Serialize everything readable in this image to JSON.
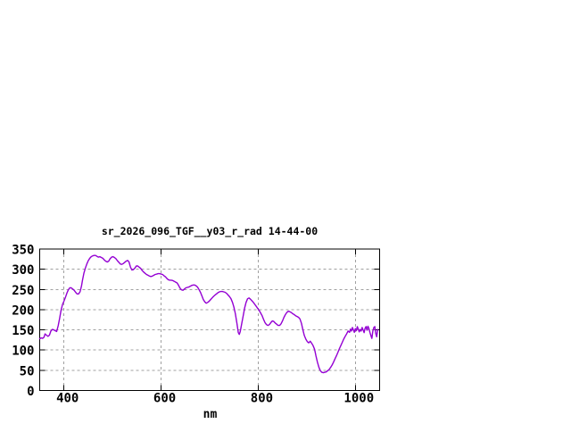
{
  "chart_data": {
    "type": "line",
    "title": "sr_2026_096_TGF__y03_r_rad 14-44-00",
    "xlabel": "nm",
    "ylabel": "",
    "xlim": [
      350,
      1050
    ],
    "ylim": [
      0,
      350
    ],
    "xticks": [
      400,
      600,
      800,
      1000
    ],
    "yticks": [
      0,
      50,
      100,
      150,
      200,
      250,
      300,
      350
    ],
    "grid": true,
    "legend": "none",
    "line_color": "#9400d3",
    "grid_color": "#a0a0a0",
    "axis_color": "#000000",
    "background_color": "#ffffff",
    "points": [
      [
        350,
        128
      ],
      [
        353,
        130
      ],
      [
        356,
        129
      ],
      [
        359,
        132
      ],
      [
        361,
        140
      ],
      [
        364,
        137
      ],
      [
        367,
        134
      ],
      [
        370,
        137
      ],
      [
        373,
        147
      ],
      [
        376,
        151
      ],
      [
        379,
        150
      ],
      [
        382,
        148
      ],
      [
        385,
        146
      ],
      [
        388,
        160
      ],
      [
        391,
        178
      ],
      [
        394,
        198
      ],
      [
        397,
        213
      ],
      [
        400,
        221
      ],
      [
        403,
        230
      ],
      [
        406,
        241
      ],
      [
        409,
        249
      ],
      [
        412,
        254
      ],
      [
        415,
        254
      ],
      [
        418,
        251
      ],
      [
        421,
        248
      ],
      [
        424,
        243
      ],
      [
        427,
        239
      ],
      [
        430,
        239
      ],
      [
        433,
        244
      ],
      [
        436,
        258
      ],
      [
        438,
        272
      ],
      [
        441,
        290
      ],
      [
        444,
        303
      ],
      [
        447,
        313
      ],
      [
        450,
        321
      ],
      [
        453,
        327
      ],
      [
        456,
        331
      ],
      [
        459,
        333
      ],
      [
        462,
        334
      ],
      [
        465,
        334
      ],
      [
        468,
        332
      ],
      [
        471,
        330
      ],
      [
        474,
        331
      ],
      [
        477,
        329
      ],
      [
        480,
        327
      ],
      [
        483,
        323
      ],
      [
        486,
        320
      ],
      [
        489,
        318
      ],
      [
        492,
        320
      ],
      [
        495,
        326
      ],
      [
        498,
        330
      ],
      [
        501,
        331
      ],
      [
        504,
        329
      ],
      [
        507,
        326
      ],
      [
        510,
        321
      ],
      [
        513,
        317
      ],
      [
        516,
        313
      ],
      [
        519,
        312
      ],
      [
        522,
        314
      ],
      [
        525,
        317
      ],
      [
        528,
        320
      ],
      [
        531,
        322
      ],
      [
        534,
        318
      ],
      [
        537,
        305
      ],
      [
        540,
        298
      ],
      [
        543,
        299
      ],
      [
        546,
        303
      ],
      [
        549,
        308
      ],
      [
        552,
        308
      ],
      [
        555,
        305
      ],
      [
        558,
        302
      ],
      [
        561,
        297
      ],
      [
        564,
        293
      ],
      [
        567,
        290
      ],
      [
        570,
        287
      ],
      [
        573,
        285
      ],
      [
        576,
        283
      ],
      [
        579,
        282
      ],
      [
        582,
        283
      ],
      [
        585,
        285
      ],
      [
        588,
        287
      ],
      [
        591,
        288
      ],
      [
        594,
        289
      ],
      [
        597,
        289
      ],
      [
        600,
        288
      ],
      [
        603,
        287
      ],
      [
        606,
        284
      ],
      [
        609,
        281
      ],
      [
        612,
        277
      ],
      [
        615,
        274
      ],
      [
        618,
        273
      ],
      [
        621,
        273
      ],
      [
        624,
        272
      ],
      [
        627,
        270
      ],
      [
        630,
        268
      ],
      [
        633,
        266
      ],
      [
        636,
        260
      ],
      [
        639,
        253
      ],
      [
        642,
        249
      ],
      [
        645,
        248
      ],
      [
        648,
        251
      ],
      [
        651,
        254
      ],
      [
        654,
        255
      ],
      [
        657,
        256
      ],
      [
        660,
        258
      ],
      [
        663,
        260
      ],
      [
        666,
        261
      ],
      [
        669,
        261
      ],
      [
        672,
        259
      ],
      [
        675,
        256
      ],
      [
        678,
        250
      ],
      [
        681,
        243
      ],
      [
        684,
        234
      ],
      [
        687,
        225
      ],
      [
        690,
        219
      ],
      [
        693,
        216
      ],
      [
        696,
        218
      ],
      [
        699,
        221
      ],
      [
        702,
        225
      ],
      [
        705,
        229
      ],
      [
        708,
        233
      ],
      [
        711,
        236
      ],
      [
        714,
        239
      ],
      [
        717,
        242
      ],
      [
        720,
        244
      ],
      [
        723,
        245
      ],
      [
        726,
        245
      ],
      [
        729,
        244
      ],
      [
        732,
        243
      ],
      [
        735,
        240
      ],
      [
        738,
        236
      ],
      [
        741,
        232
      ],
      [
        744,
        227
      ],
      [
        747,
        218
      ],
      [
        750,
        206
      ],
      [
        753,
        190
      ],
      [
        756,
        167
      ],
      [
        759,
        143
      ],
      [
        761,
        139
      ],
      [
        763,
        146
      ],
      [
        766,
        165
      ],
      [
        769,
        185
      ],
      [
        772,
        204
      ],
      [
        775,
        218
      ],
      [
        778,
        227
      ],
      [
        781,
        229
      ],
      [
        784,
        226
      ],
      [
        787,
        222
      ],
      [
        790,
        218
      ],
      [
        793,
        213
      ],
      [
        796,
        208
      ],
      [
        799,
        203
      ],
      [
        802,
        198
      ],
      [
        805,
        192
      ],
      [
        808,
        185
      ],
      [
        811,
        176
      ],
      [
        814,
        168
      ],
      [
        817,
        163
      ],
      [
        820,
        161
      ],
      [
        823,
        163
      ],
      [
        826,
        168
      ],
      [
        829,
        172
      ],
      [
        832,
        171
      ],
      [
        835,
        167
      ],
      [
        838,
        164
      ],
      [
        841,
        161
      ],
      [
        844,
        161
      ],
      [
        847,
        165
      ],
      [
        850,
        172
      ],
      [
        853,
        181
      ],
      [
        856,
        188
      ],
      [
        859,
        193
      ],
      [
        862,
        196
      ],
      [
        865,
        195
      ],
      [
        868,
        193
      ],
      [
        871,
        190
      ],
      [
        874,
        188
      ],
      [
        877,
        185
      ],
      [
        880,
        183
      ],
      [
        883,
        181
      ],
      [
        886,
        177
      ],
      [
        889,
        166
      ],
      [
        892,
        150
      ],
      [
        895,
        136
      ],
      [
        898,
        127
      ],
      [
        901,
        121
      ],
      [
        904,
        118
      ],
      [
        907,
        122
      ],
      [
        910,
        117
      ],
      [
        913,
        111
      ],
      [
        916,
        102
      ],
      [
        919,
        85
      ],
      [
        922,
        70
      ],
      [
        925,
        57
      ],
      [
        928,
        49
      ],
      [
        931,
        45
      ],
      [
        934,
        44
      ],
      [
        937,
        45
      ],
      [
        940,
        46
      ],
      [
        943,
        49
      ],
      [
        946,
        52
      ],
      [
        949,
        57
      ],
      [
        952,
        63
      ],
      [
        955,
        70
      ],
      [
        958,
        78
      ],
      [
        961,
        86
      ],
      [
        964,
        94
      ],
      [
        967,
        103
      ],
      [
        970,
        111
      ],
      [
        973,
        119
      ],
      [
        976,
        127
      ],
      [
        979,
        134
      ],
      [
        982,
        140
      ],
      [
        985,
        147
      ],
      [
        988,
        144
      ],
      [
        990,
        152
      ],
      [
        992,
        147
      ],
      [
        994,
        156
      ],
      [
        996,
        150
      ],
      [
        998,
        144
      ],
      [
        1000,
        153
      ],
      [
        1002,
        148
      ],
      [
        1004,
        158
      ],
      [
        1006,
        152
      ],
      [
        1008,
        145
      ],
      [
        1010,
        151
      ],
      [
        1012,
        147
      ],
      [
        1014,
        156
      ],
      [
        1016,
        150
      ],
      [
        1018,
        143
      ],
      [
        1020,
        154
      ],
      [
        1022,
        158
      ],
      [
        1024,
        149
      ],
      [
        1026,
        159
      ],
      [
        1028,
        153
      ],
      [
        1030,
        144
      ],
      [
        1032,
        136
      ],
      [
        1034,
        129
      ],
      [
        1036,
        147
      ],
      [
        1038,
        156
      ],
      [
        1040,
        158
      ],
      [
        1042,
        141
      ],
      [
        1044,
        133
      ],
      [
        1046,
        151
      ]
    ]
  }
}
